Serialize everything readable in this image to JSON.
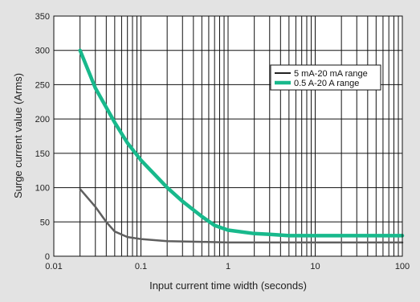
{
  "chart_data": {
    "type": "line",
    "title": "",
    "xlabel": "Input current time width (seconds)",
    "ylabel": "Surge current value (Arms)",
    "x_scale": "log",
    "xlim": [
      0.01,
      100
    ],
    "ylim": [
      0,
      350
    ],
    "x_ticks": [
      0.01,
      0.1,
      1,
      10,
      100
    ],
    "x_tick_labels": [
      "0.01",
      "0.1",
      "1",
      "10",
      "100"
    ],
    "y_ticks": [
      0,
      50,
      100,
      150,
      200,
      250,
      300,
      350
    ],
    "y_tick_labels": [
      "0",
      "50",
      "100",
      "150",
      "200",
      "250",
      "300",
      "350"
    ],
    "grid": true,
    "legend_position": "top-right",
    "series": [
      {
        "name": "5 mA-20 mA range",
        "color": "#5f5f5f",
        "legend_color": "#222222",
        "x": [
          0.02,
          0.03,
          0.04,
          0.05,
          0.07,
          0.1,
          0.2,
          0.5,
          1,
          2,
          5,
          10,
          100
        ],
        "y": [
          98,
          72,
          50,
          36,
          28,
          25,
          22,
          21,
          20,
          20,
          20,
          20,
          20
        ]
      },
      {
        "name": "0.5 A-20 A range",
        "color": "#18b98c",
        "legend_color": "#18b98c",
        "x": [
          0.02,
          0.03,
          0.05,
          0.07,
          0.1,
          0.2,
          0.3,
          0.5,
          0.7,
          1,
          2,
          3,
          5,
          10,
          100
        ],
        "y": [
          300,
          245,
          195,
          165,
          140,
          100,
          80,
          58,
          45,
          38,
          33,
          32,
          30,
          30,
          30
        ]
      }
    ]
  }
}
